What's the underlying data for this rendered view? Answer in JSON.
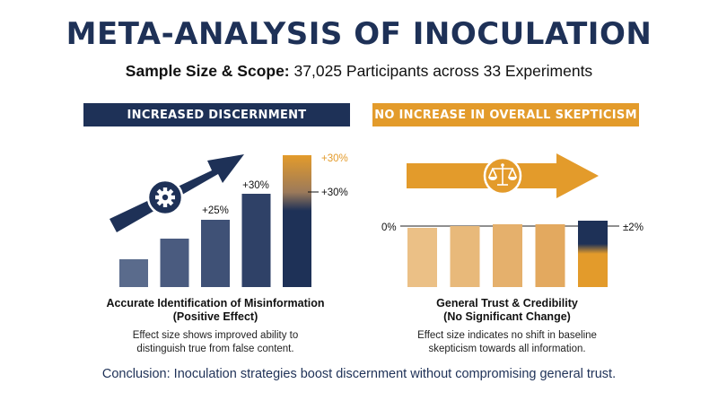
{
  "title": "META-ANALYSIS OF INOCULATION",
  "subtitle": {
    "label": "Sample Size & Scope:",
    "value": "37,025 Participants across 33 Experiments"
  },
  "colors": {
    "navy": "#1e3157",
    "orange": "#e39b2b",
    "light_orange": "#e8b97a"
  },
  "left_panel": {
    "banner": "INCREASED DISCERNMENT",
    "caption_title_1": "Accurate Identification of Misinformation",
    "caption_title_2": "(Positive Effect)",
    "caption_body_1": "Effect size shows improved ability to",
    "caption_body_2": "distinguish true from false content.",
    "icon": "gear-icon"
  },
  "right_panel": {
    "banner": "NO INCREASE IN OVERALL SKEPTICISM",
    "caption_title_1": "General Trust & Credibility",
    "caption_title_2": "(No Significant Change)",
    "caption_body_1": "Effect size indicates no shift in baseline",
    "caption_body_2": "skepticism towards all information.",
    "icon": "scales-icon"
  },
  "conclusion": "Conclusion: Inoculation strategies boost discernment without compromising general trust.",
  "chart_data": [
    {
      "type": "bar",
      "title": "INCREASED DISCERNMENT",
      "values": [
        5,
        12,
        25,
        30,
        30
      ],
      "value_labels": [
        "",
        "",
        "+25%",
        "+30%",
        "+30%"
      ],
      "highlight_label": "+30%",
      "trend": "upward arrow"
    },
    {
      "type": "bar",
      "title": "NO INCREASE IN OVERALL SKEPTICISM",
      "values": [
        0,
        0.5,
        1,
        1,
        2
      ],
      "baseline_label": "0%",
      "range_label": "±2%",
      "trend": "flat arrow"
    }
  ]
}
